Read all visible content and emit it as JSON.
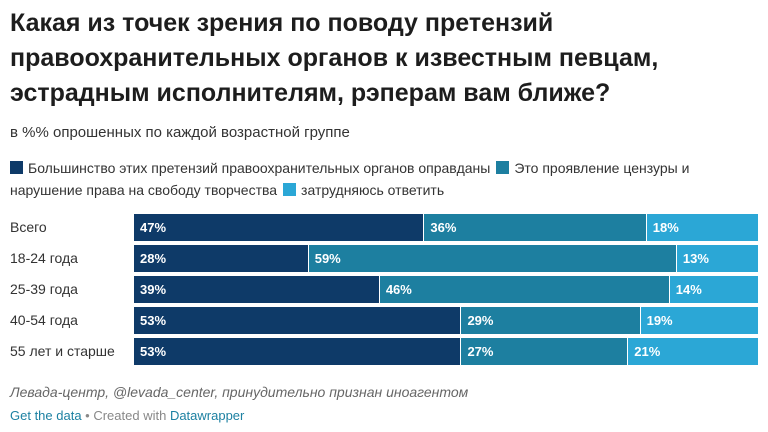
{
  "title": "Какая из точек зрения по поводу претензий правоохранительных органов к известным певцам, эстрадным исполнителям, рэперам вам ближе?",
  "subtitle": "в %% опрошенных по каждой возрастной группе",
  "source": "Левада-центр, @levada_center, принудительно признан иноагентом",
  "footer": {
    "get_data": "Get the data",
    "separator": " • Created with ",
    "tool": "Datawrapper"
  },
  "chart_data": {
    "type": "bar",
    "orientation": "horizontal",
    "stacked": true,
    "normalized": true,
    "categories": [
      "Всего",
      "18-24 года",
      "25-39 года",
      "40-54 года",
      "55 лет и старше"
    ],
    "series": [
      {
        "name": "Большинство этих претензий правоохранительных органов оправданы",
        "color": "#0e3a68",
        "values": [
          47,
          28,
          39,
          53,
          53
        ]
      },
      {
        "name": "Это проявление цензуры и нарушение права на свободу творчества",
        "color": "#1d7fa0",
        "values": [
          36,
          59,
          46,
          29,
          27
        ]
      },
      {
        "name": "затрудняюсь ответить",
        "color": "#2ba7d6",
        "values": [
          18,
          13,
          14,
          19,
          21
        ]
      }
    ],
    "value_suffix": "%",
    "legend_position": "top",
    "grid": false
  }
}
